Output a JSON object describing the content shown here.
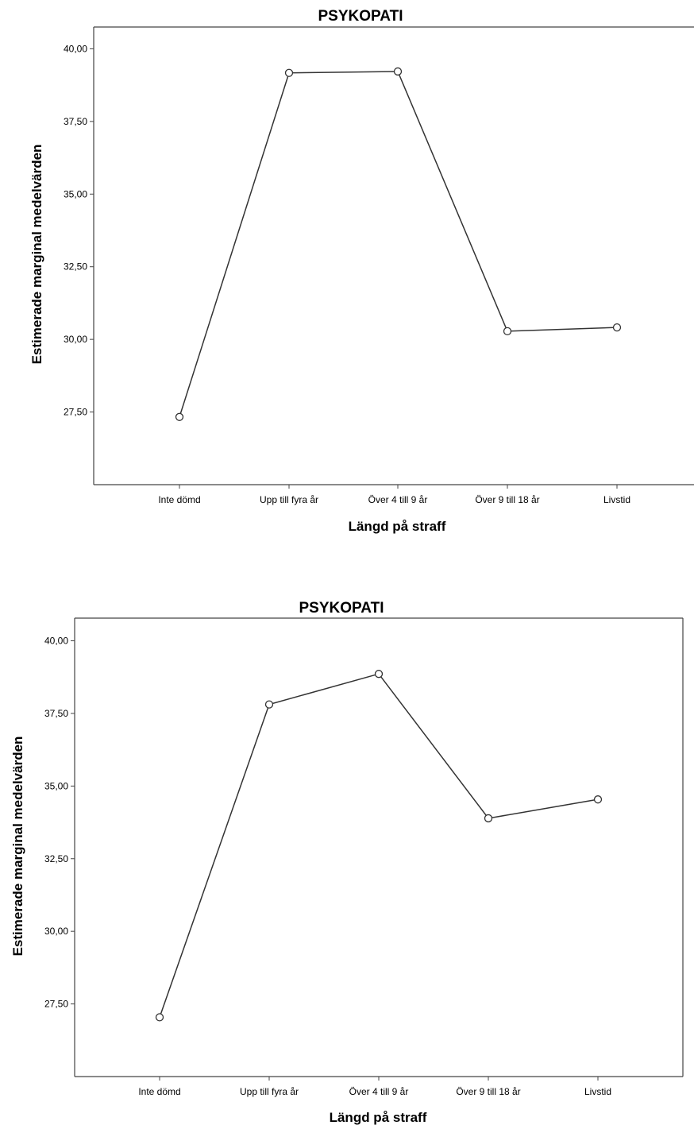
{
  "chart_data": [
    {
      "type": "line",
      "title": "PSYKOPATI",
      "xlabel": "Längd på straff",
      "ylabel": "Estimerade marginal medelvärden",
      "categories": [
        "Inte dömd",
        "Upp till fyra år",
        "Över 4 till 9 år",
        "Över 9 till 18 år",
        "Livstid"
      ],
      "values": [
        27.33,
        39.17,
        39.22,
        30.28,
        30.41
      ],
      "y_ticks": [
        "27,50",
        "30,00",
        "32,50",
        "35,00",
        "37,50",
        "40,00"
      ],
      "ylim": [
        25.0,
        40.75
      ],
      "grid": false,
      "frame": "left-top-only"
    },
    {
      "type": "line",
      "title": "PSYKOPATI",
      "xlabel": "Längd på straff",
      "ylabel": "Estimerade marginal medelvärden",
      "categories": [
        "Inte dömd",
        "Upp till fyra år",
        "Över 4 till 9 år",
        "Över 9 till 18 år",
        "Livstid"
      ],
      "values": [
        27.04,
        37.81,
        38.86,
        33.89,
        34.54
      ],
      "y_ticks": [
        "27,50",
        "30,00",
        "32,50",
        "35,00",
        "37,50",
        "40,00"
      ],
      "ylim": [
        25.0,
        40.78
      ],
      "grid": false,
      "frame": "full-box"
    }
  ]
}
